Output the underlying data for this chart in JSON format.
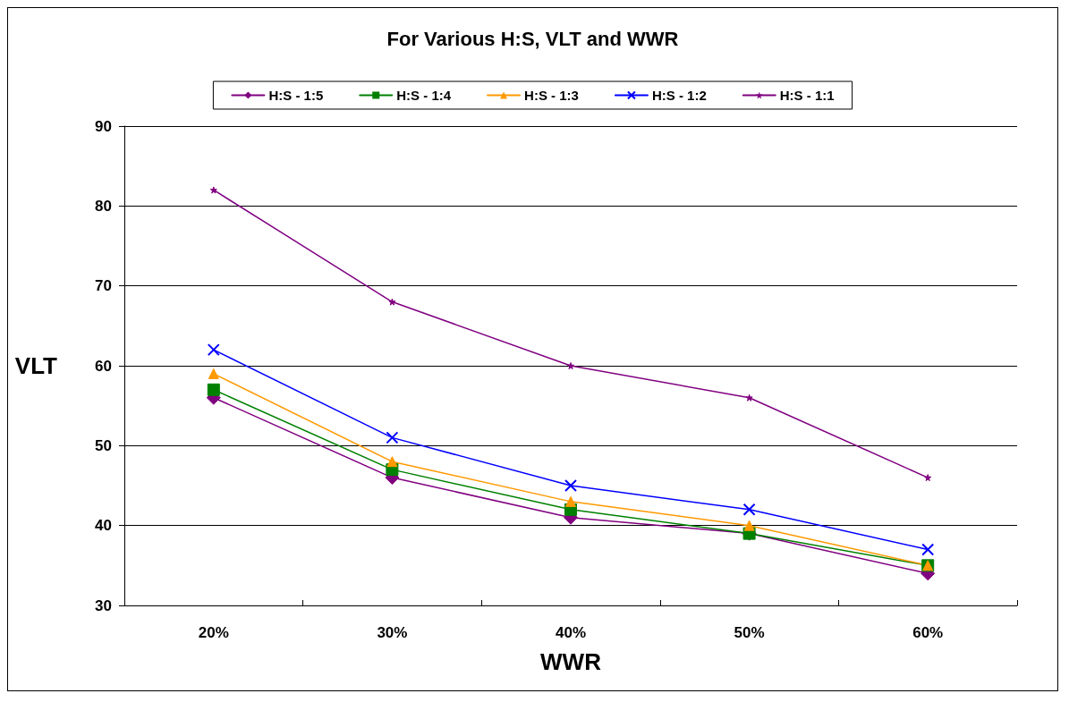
{
  "chart_data": {
    "type": "line",
    "title": "For Various H:S, VLT and WWR",
    "xlabel": "WWR",
    "ylabel": "VLT",
    "categories": [
      "20%",
      "30%",
      "40%",
      "50%",
      "60%"
    ],
    "series": [
      {
        "name": "H:S - 1:5",
        "color": "#800080",
        "marker": "diamond",
        "values": [
          56,
          46,
          41,
          39,
          34
        ]
      },
      {
        "name": "H:S - 1:4",
        "color": "#008000",
        "marker": "square",
        "values": [
          57,
          47,
          42,
          39,
          35
        ]
      },
      {
        "name": "H:S - 1:3",
        "color": "#ff9900",
        "marker": "triangle",
        "values": [
          59,
          48,
          43,
          40,
          35
        ]
      },
      {
        "name": "H:S - 1:2",
        "color": "#0000ff",
        "marker": "cross",
        "values": [
          62,
          51,
          45,
          42,
          37
        ]
      },
      {
        "name": "H:S - 1:1",
        "color": "#800080",
        "marker": "star",
        "values": [
          82,
          68,
          60,
          56,
          46
        ]
      }
    ],
    "ylim": [
      30,
      90
    ],
    "yticks": [
      30,
      40,
      50,
      60,
      70,
      80,
      90
    ],
    "grid": "y",
    "legend": "top",
    "line_style": "solid"
  }
}
